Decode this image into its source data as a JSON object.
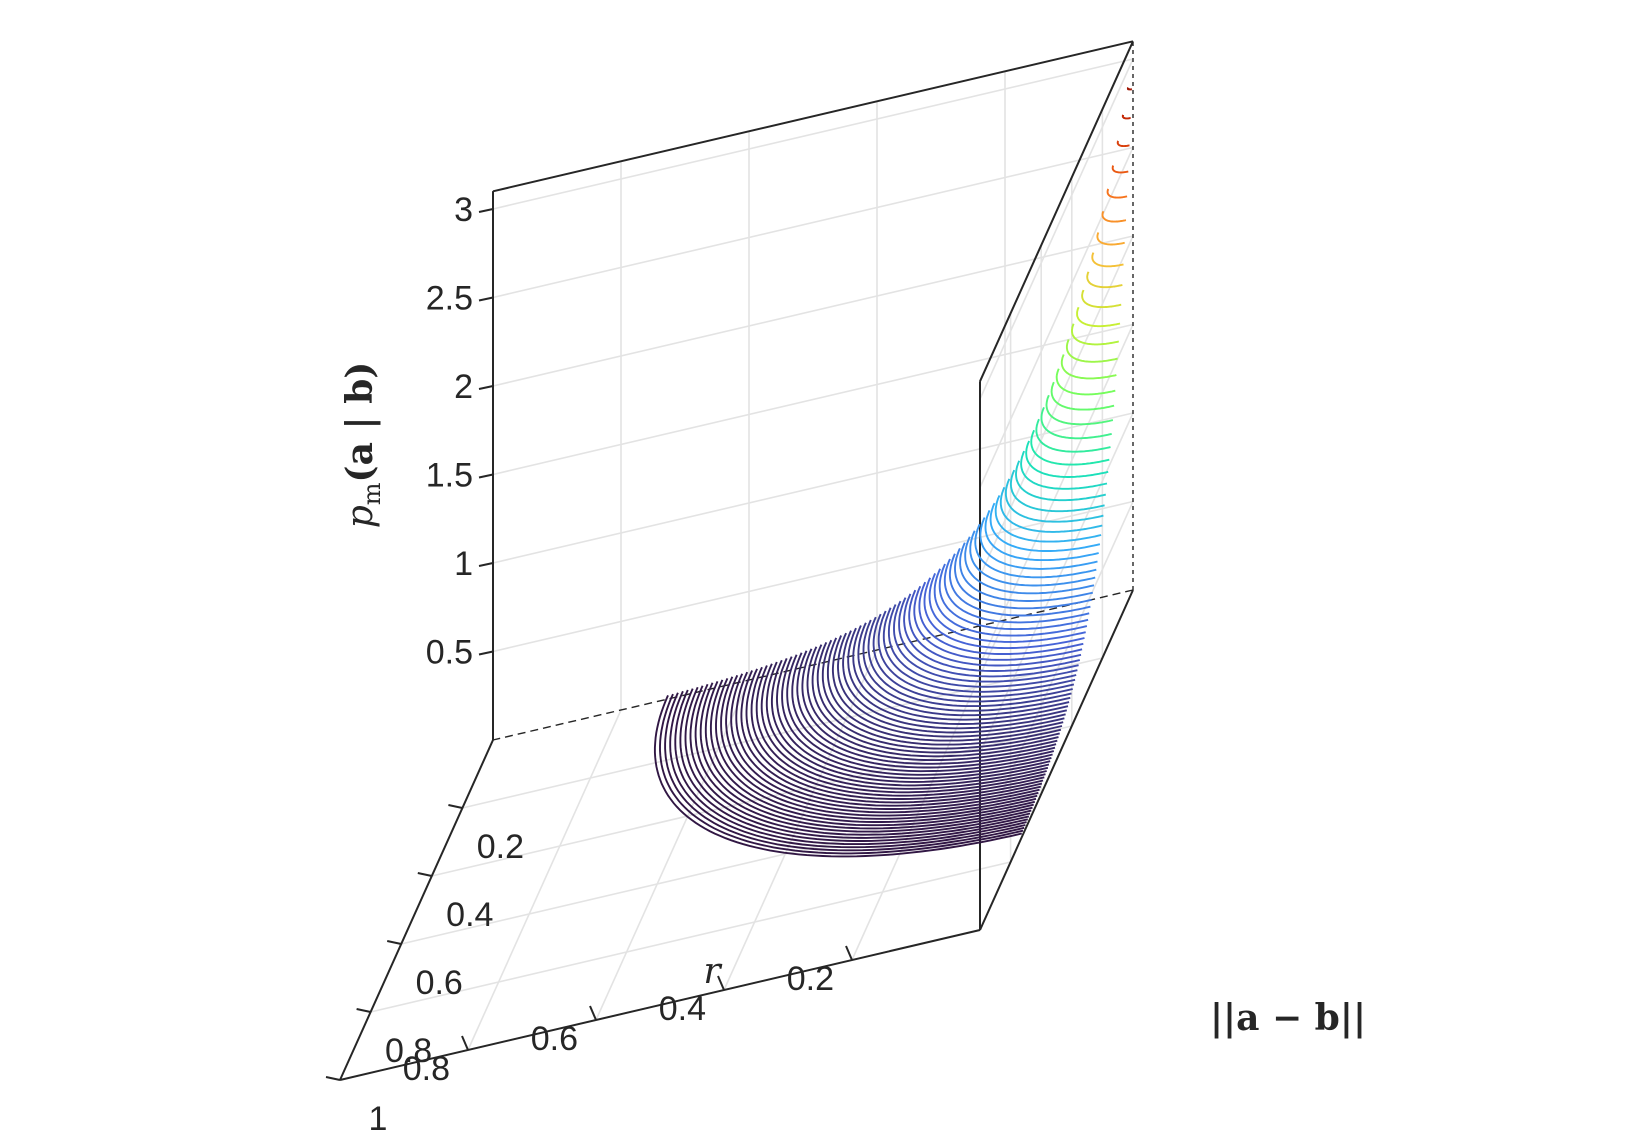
{
  "chart_data": {
    "type": "surface",
    "title": "",
    "zlabel": {
      "base": "p",
      "sub": "m",
      "rest": "(a | b)"
    },
    "xlabel": "||a − b||",
    "ylabel": "r",
    "x_axis": {
      "ticks": [
        "0.2",
        "0.4",
        "0.6",
        "0.8",
        "1"
      ],
      "range": [
        0,
        1
      ]
    },
    "r_axis": {
      "ticks": [
        "0.2",
        "0.4",
        "0.6",
        "0.8"
      ],
      "range": [
        0,
        1
      ]
    },
    "z_axis": {
      "ticks": [
        "0.5",
        "1",
        "1.5",
        "2",
        "2.5",
        "3"
      ],
      "range": [
        0,
        3
      ]
    },
    "peak": {
      "distance": 0,
      "r": 0,
      "value": 3.0
    },
    "colormap": [
      "#30123b",
      "#4662d7",
      "#36aaf9",
      "#1ae4b6",
      "#72fe5e",
      "#c7ef34",
      "#faba39",
      "#f66b19",
      "#cb2a04",
      "#7a0403"
    ],
    "contour_lines": 95,
    "grid": true,
    "box": "open"
  }
}
